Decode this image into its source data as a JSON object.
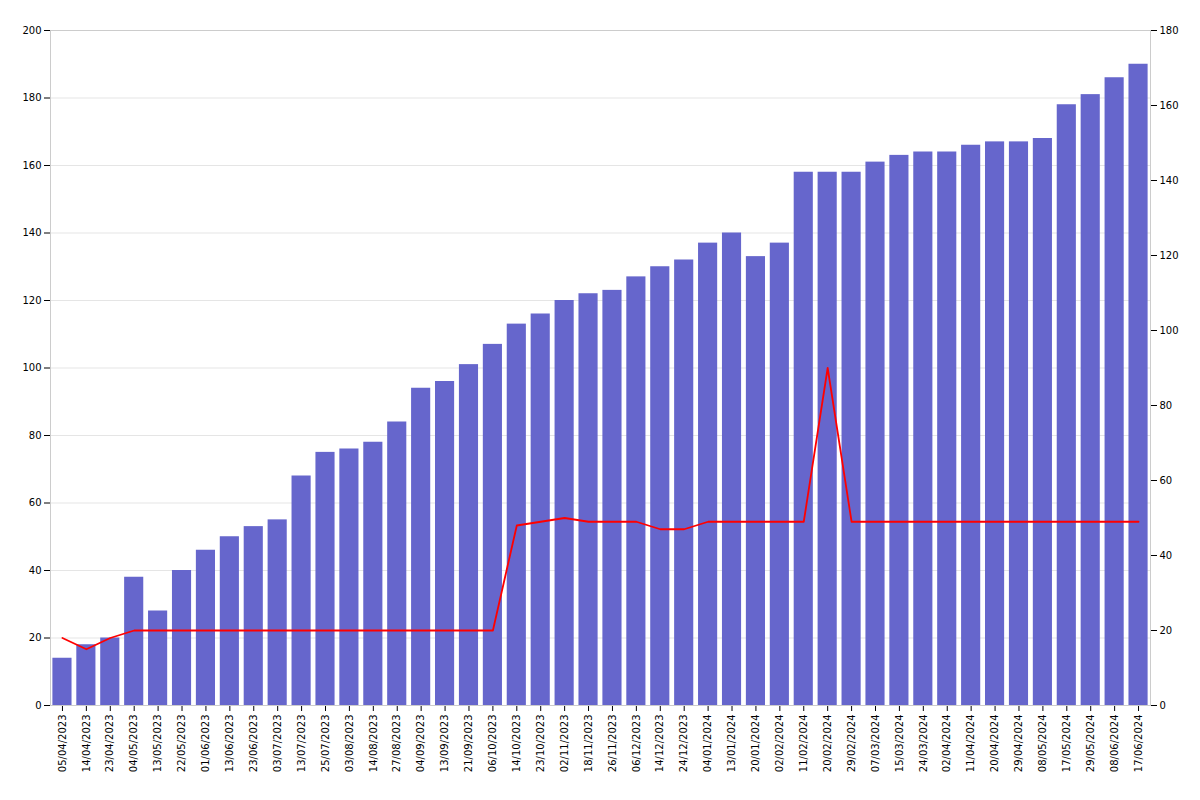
{
  "chart_data": {
    "type": "bar",
    "categories": [
      "05/04/2023",
      "14/04/2023",
      "23/04/2023",
      "04/05/2023",
      "13/05/2023",
      "22/05/2023",
      "01/06/2023",
      "13/06/2023",
      "23/06/2023",
      "03/07/2023",
      "13/07/2023",
      "25/07/2023",
      "03/08/2023",
      "14/08/2023",
      "27/08/2023",
      "04/09/2023",
      "13/09/2023",
      "21/09/2023",
      "06/10/2023",
      "14/10/2023",
      "23/10/2023",
      "02/11/2023",
      "18/11/2023",
      "26/11/2023",
      "06/12/2023",
      "14/12/2023",
      "24/12/2023",
      "04/01/2024",
      "13/01/2024",
      "20/01/2024",
      "02/02/2024",
      "11/02/2024",
      "20/02/2024",
      "29/02/2024",
      "07/03/2024",
      "15/03/2024",
      "24/03/2024",
      "02/04/2024",
      "11/04/2024",
      "20/04/2024",
      "29/04/2024",
      "08/05/2024",
      "17/05/2024",
      "29/05/2024",
      "08/06/2024",
      "17/06/2024"
    ],
    "series": [
      {
        "type": "bar",
        "color": "#6666cc",
        "values": [
          14,
          18,
          20,
          38,
          28,
          40,
          46,
          50,
          53,
          55,
          68,
          75,
          76,
          78,
          84,
          94,
          96,
          101,
          107,
          113,
          116,
          120,
          122,
          123,
          127,
          130,
          132,
          137,
          140,
          133,
          137,
          158,
          158,
          158,
          161,
          163,
          164,
          164,
          166,
          167,
          167,
          168,
          178,
          181,
          186,
          190
        ]
      },
      {
        "type": "line",
        "color": "#ff0000",
        "axis": "y2",
        "values": [
          18,
          15,
          18,
          20,
          20,
          20,
          20,
          20,
          20,
          20,
          20,
          20,
          20,
          20,
          20,
          20,
          20,
          20,
          20,
          48,
          49,
          50,
          49,
          49,
          49,
          47,
          47,
          49,
          49,
          49,
          49,
          49,
          90,
          49,
          49,
          49,
          49,
          49,
          49,
          49,
          49,
          49,
          49,
          49,
          49,
          49
        ]
      }
    ],
    "ylim": [
      0,
      200
    ],
    "yticks": [
      0,
      20,
      40,
      60,
      80,
      100,
      120,
      140,
      160,
      180,
      200
    ],
    "y2lim": [
      0,
      180
    ],
    "y2ticks": [
      0,
      20,
      40,
      60,
      80,
      100,
      120,
      140,
      160,
      180
    ],
    "grid": true
  }
}
